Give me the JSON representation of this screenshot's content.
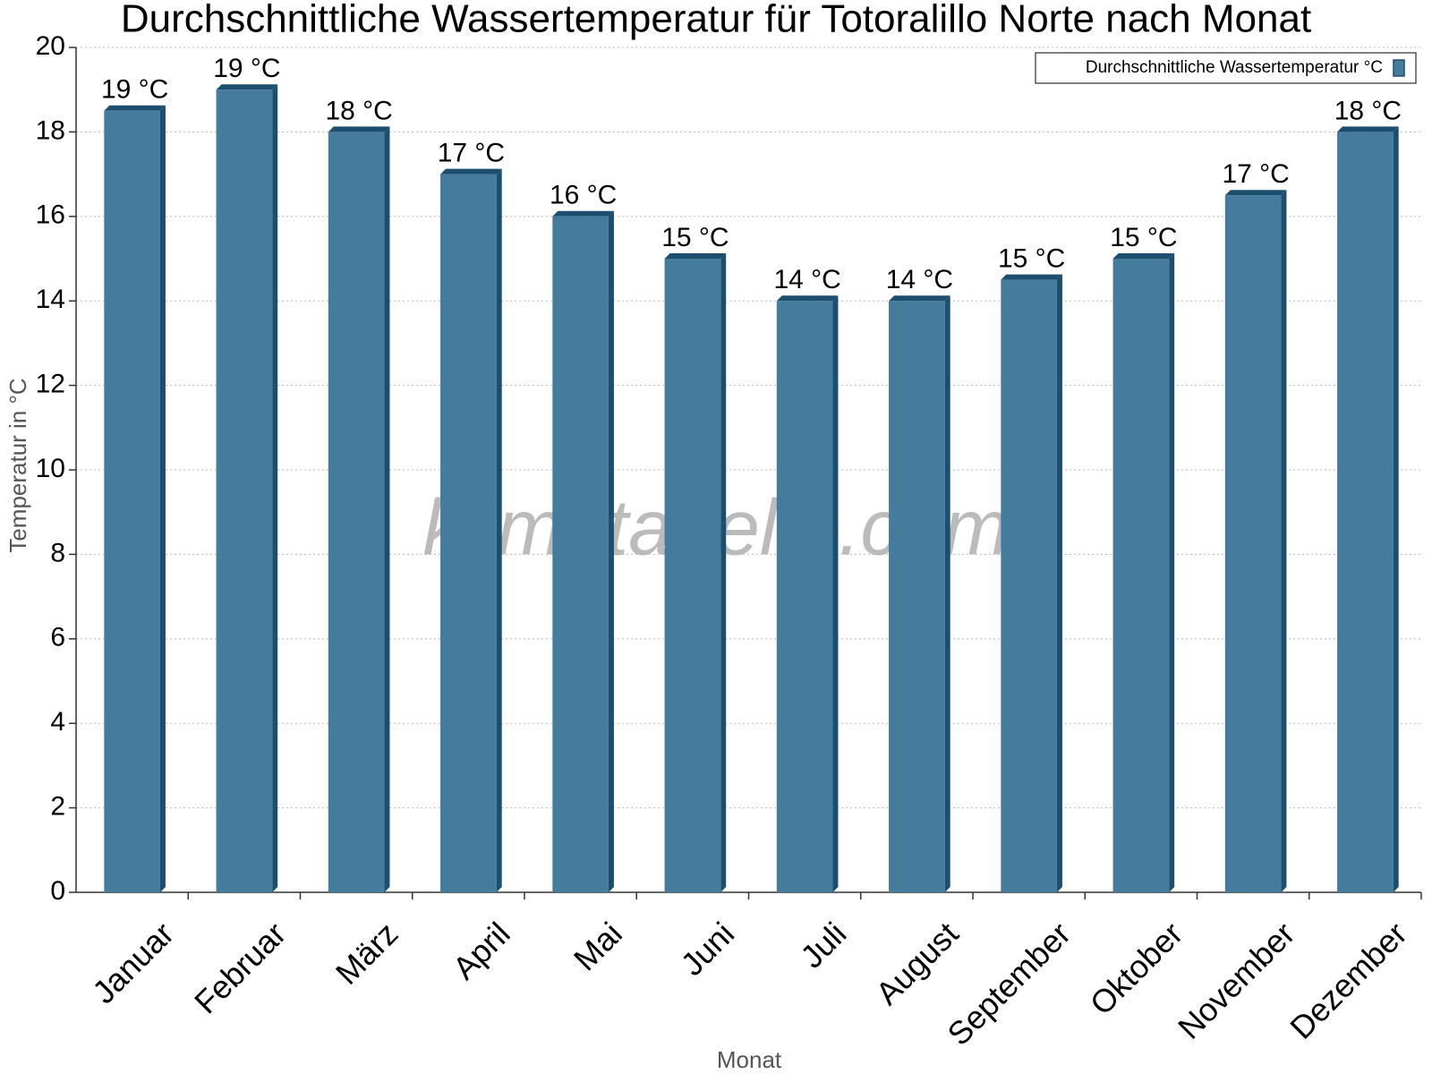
{
  "chart_data": {
    "type": "bar",
    "title": "Durchschnittliche Wassertemperatur für Totoralillo Norte nach Monat",
    "x_label": "Monat",
    "y_label": "Temperatur in °C",
    "watermark": "klimatabelle.com",
    "categories": [
      "Januar",
      "Februar",
      "März",
      "April",
      "Mai",
      "Juni",
      "Juli",
      "August",
      "September",
      "Oktober",
      "November",
      "Dezember"
    ],
    "series": [
      {
        "name": "Durchschnittliche Wassertemperatur °C",
        "color": "#457b9d",
        "values": [
          18.5,
          19,
          18,
          17,
          16,
          15,
          14,
          14,
          14.5,
          15,
          16.5,
          18
        ],
        "value_labels": [
          "19 °C",
          "19 °C",
          "18 °C",
          "17 °C",
          "16 °C",
          "15 °C",
          "14 °C",
          "14 °C",
          "15 °C",
          "15 °C",
          "17 °C",
          "18 °C"
        ]
      }
    ],
    "ylim": [
      0,
      20
    ],
    "yticks": [
      0,
      2,
      4,
      6,
      8,
      10,
      12,
      14,
      16,
      18,
      20
    ],
    "grid": true,
    "legend": "top-right"
  }
}
